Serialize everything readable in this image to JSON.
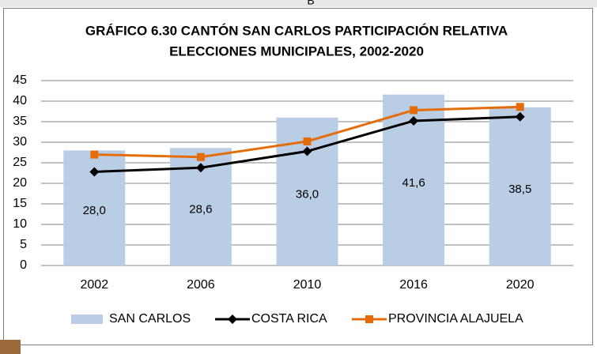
{
  "spreadsheet": {
    "column_header": "B"
  },
  "chart_data": {
    "type": "combo",
    "title": [
      "GRÁFICO 6.30 CANTÓN SAN CARLOS PARTICIPACIÓN RELATIVA",
      "ELECCIONES MUNICIPALES, 2002-2020"
    ],
    "categories": [
      "2002",
      "2006",
      "2010",
      "2016",
      "2020"
    ],
    "series": [
      {
        "name": "SAN CARLOS",
        "type": "bar",
        "color": "#b9cde5",
        "values": [
          28.0,
          28.6,
          36.0,
          41.6,
          38.5
        ],
        "value_labels": [
          "28,0",
          "28,6",
          "36,0",
          "41,6",
          "38,5"
        ]
      },
      {
        "name": "COSTA RICA",
        "type": "line",
        "marker": "diamond",
        "color": "#000000",
        "values": [
          22.8,
          23.8,
          27.8,
          35.2,
          36.2
        ]
      },
      {
        "name": "PROVINCIA ALAJUELA",
        "type": "line",
        "marker": "square",
        "color": "#e46c0a",
        "values": [
          27.0,
          26.4,
          30.2,
          37.8,
          38.6
        ]
      }
    ],
    "ylim": [
      0,
      45
    ],
    "yticks": [
      0,
      5,
      10,
      15,
      20,
      25,
      30,
      35,
      40,
      45
    ],
    "grid": true,
    "legend": "bottom"
  }
}
